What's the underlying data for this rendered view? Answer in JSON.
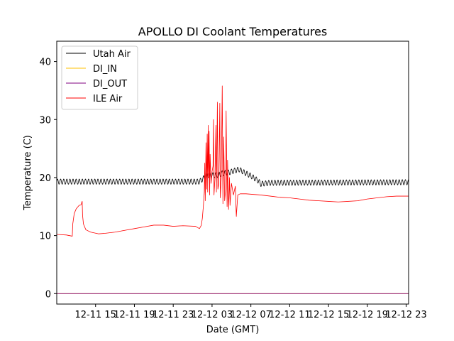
{
  "chart_data": {
    "type": "line",
    "title": "APOLLO DI Coolant Temperatures",
    "xlabel": "Date (GMT)",
    "ylabel": "Temperature (C)",
    "x_unit": "hours since 12-11 11:00 GMT",
    "xlim": [
      0,
      36.25
    ],
    "ylim": [
      -1.8,
      43.5
    ],
    "x_ticks": [
      {
        "x": 4,
        "label": "12-11 15"
      },
      {
        "x": 8,
        "label": "12-11 19"
      },
      {
        "x": 12,
        "label": "12-11 23"
      },
      {
        "x": 16,
        "label": "12-12 03"
      },
      {
        "x": 20,
        "label": "12-12 07"
      },
      {
        "x": 24,
        "label": "12-12 11"
      },
      {
        "x": 28,
        "label": "12-12 15"
      },
      {
        "x": 32,
        "label": "12-12 19"
      },
      {
        "x": 36,
        "label": "12-12 23"
      }
    ],
    "y_ticks": [
      0,
      10,
      20,
      30,
      40
    ],
    "legend_position": "top-left",
    "series": [
      {
        "name": "Utah Air",
        "color": "#000000",
        "baseline": [
          [
            0,
            19.3
          ],
          [
            14.7,
            19.3
          ],
          [
            15.0,
            19.7
          ],
          [
            15.5,
            20.4
          ],
          [
            16.5,
            20.4
          ],
          [
            17.0,
            20.7
          ],
          [
            17.8,
            20.9
          ],
          [
            18.3,
            21.2
          ],
          [
            18.8,
            21.4
          ],
          [
            19.3,
            20.9
          ],
          [
            20.0,
            20.3
          ],
          [
            20.8,
            19.4
          ],
          [
            21.0,
            18.9
          ],
          [
            22.0,
            19.1
          ],
          [
            36.25,
            19.2
          ]
        ],
        "oscillation_amplitude": 0.45,
        "oscillation_period_hours": 0.32
      },
      {
        "name": "DI_IN",
        "color": "#ffc000",
        "points": [
          [
            0,
            0
          ],
          [
            36.25,
            0
          ]
        ]
      },
      {
        "name": "DI_OUT",
        "color": "#800080",
        "points": [
          [
            0,
            0
          ],
          [
            36.25,
            0
          ]
        ]
      },
      {
        "name": "ILE Air",
        "color": "#ff0000",
        "points": [
          [
            0,
            10.2
          ],
          [
            1.0,
            10.1
          ],
          [
            1.6,
            9.9
          ],
          [
            1.65,
            12.0
          ],
          [
            1.8,
            13.8
          ],
          [
            2.0,
            14.6
          ],
          [
            2.3,
            15.2
          ],
          [
            2.5,
            15.3
          ],
          [
            2.62,
            15.9
          ],
          [
            2.66,
            13.5
          ],
          [
            2.75,
            12.0
          ],
          [
            3.0,
            11.0
          ],
          [
            3.5,
            10.6
          ],
          [
            4.3,
            10.3
          ],
          [
            5.0,
            10.4
          ],
          [
            6.0,
            10.6
          ],
          [
            7.0,
            10.9
          ],
          [
            8.0,
            11.2
          ],
          [
            9.0,
            11.5
          ],
          [
            10.0,
            11.8
          ],
          [
            11.0,
            11.8
          ],
          [
            12.0,
            11.6
          ],
          [
            13.0,
            11.7
          ],
          [
            14.3,
            11.6
          ],
          [
            14.7,
            11.2
          ],
          [
            14.9,
            11.8
          ],
          [
            15.0,
            13.0
          ],
          [
            15.1,
            15.0
          ],
          [
            15.2,
            17.5
          ],
          [
            15.25,
            22.5
          ],
          [
            15.3,
            16.0
          ],
          [
            15.38,
            26.0
          ],
          [
            15.45,
            18.0
          ],
          [
            15.5,
            27.5
          ],
          [
            15.55,
            17.5
          ],
          [
            15.6,
            29.0
          ],
          [
            15.65,
            20.0
          ],
          [
            15.7,
            28.0
          ],
          [
            15.75,
            17.0
          ],
          [
            15.8,
            24.0
          ],
          [
            15.9,
            19.0
          ],
          [
            16.0,
            21.0
          ],
          [
            16.1,
            22.0
          ],
          [
            16.15,
            30.0
          ],
          [
            16.2,
            17.0
          ],
          [
            16.3,
            20.0
          ],
          [
            16.4,
            29.0
          ],
          [
            16.45,
            17.5
          ],
          [
            16.55,
            33.0
          ],
          [
            16.6,
            18.0
          ],
          [
            16.7,
            19.0
          ],
          [
            16.8,
            32.8
          ],
          [
            16.85,
            16.5
          ],
          [
            16.95,
            20.0
          ],
          [
            17.05,
            35.8
          ],
          [
            17.12,
            15.5
          ],
          [
            17.2,
            27.0
          ],
          [
            17.3,
            16.0
          ],
          [
            17.4,
            18.0
          ],
          [
            17.45,
            31.5
          ],
          [
            17.55,
            15.0
          ],
          [
            17.6,
            23.0
          ],
          [
            17.7,
            14.5
          ],
          [
            17.8,
            20.0
          ],
          [
            17.85,
            15.2
          ],
          [
            18.0,
            19.0
          ],
          [
            18.2,
            17.0
          ],
          [
            18.4,
            18.5
          ],
          [
            18.5,
            13.3
          ],
          [
            18.65,
            17.0
          ],
          [
            18.9,
            17.2
          ],
          [
            19.5,
            17.2
          ],
          [
            21.0,
            17.0
          ],
          [
            22.0,
            16.8
          ],
          [
            23.0,
            16.6
          ],
          [
            24.0,
            16.5
          ],
          [
            25.0,
            16.3
          ],
          [
            26.0,
            16.1
          ],
          [
            27.0,
            16.0
          ],
          [
            28.0,
            15.9
          ],
          [
            29.0,
            15.8
          ],
          [
            30.0,
            15.9
          ],
          [
            31.0,
            16.0
          ],
          [
            32.0,
            16.3
          ],
          [
            33.0,
            16.5
          ],
          [
            34.0,
            16.7
          ],
          [
            35.0,
            16.8
          ],
          [
            36.25,
            16.8
          ]
        ]
      }
    ]
  }
}
